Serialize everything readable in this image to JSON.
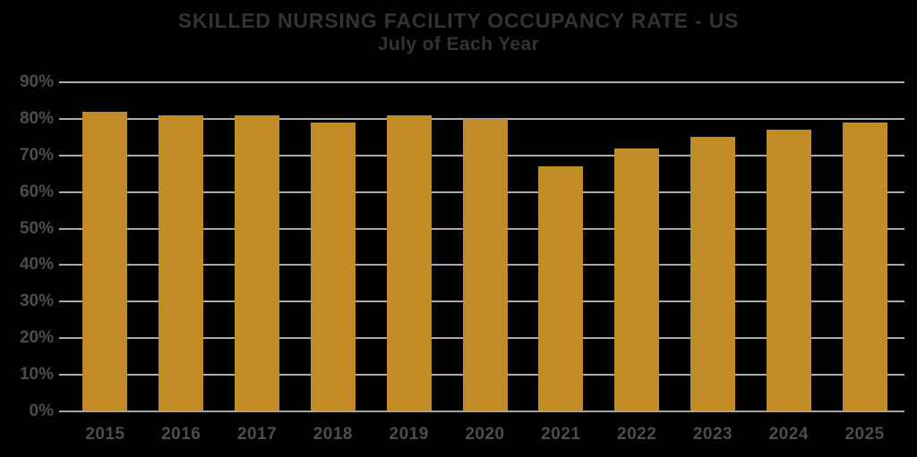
{
  "chart_data": {
    "type": "bar",
    "title": "SKILLED NURSING FACILITY OCCUPANCY RATE - US",
    "subtitle": "July of Each Year",
    "categories": [
      "2015",
      "2016",
      "2017",
      "2018",
      "2019",
      "2020",
      "2021",
      "2022",
      "2023",
      "2024",
      "2025"
    ],
    "values": [
      82,
      81,
      81,
      79,
      81,
      80,
      67,
      72,
      75,
      77,
      79
    ],
    "value_unit": "%",
    "xlabel": "",
    "ylabel": "",
    "ylim": [
      0,
      90
    ],
    "ytick_step": 10,
    "ytick_labels": [
      "0%",
      "10%",
      "20%",
      "30%",
      "40%",
      "50%",
      "60%",
      "70%",
      "80%",
      "90%"
    ],
    "grid": true,
    "grid_direction": "horizontal",
    "legend": false,
    "colors": {
      "bar": "#C18C28",
      "gridline": "#ABABAB",
      "axis_line": "#A3A3A3",
      "title_text": "#333333",
      "tick_text": "#4D4D4D",
      "background": "#000000"
    }
  }
}
